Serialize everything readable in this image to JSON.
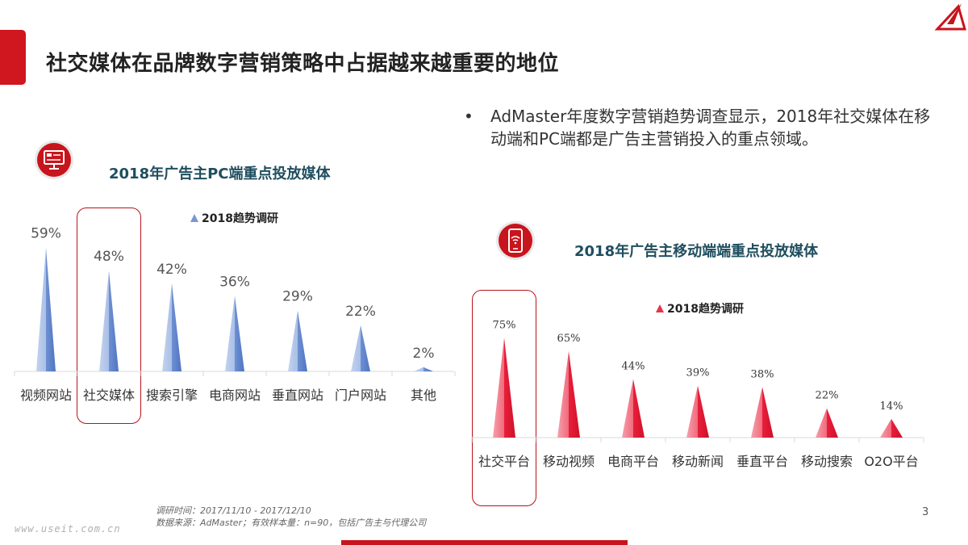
{
  "page": {
    "title": "社交媒体在品牌数字营销策略中占据越来越重要的地位",
    "bullet_mark": "•",
    "bullet_text": "AdMaster年度数字营销趋势调查显示，2018年社交媒体在移动端和PC端都是广告主营销投入的重点领域。",
    "footnote_line1": "调研时间：2017/11/10 - 2017/12/10",
    "footnote_line2": "数据来源：AdMaster；有效样本量：n=90，包括广告主与代理公司",
    "watermark": "www.useit.com.cn",
    "page_number": "3"
  },
  "colors": {
    "accent_red": "#d0161e",
    "pc_bar_light": "#b4c7e7",
    "pc_bar_dark": "#5b7fc7",
    "mobile_bar_light": "#f47a89",
    "mobile_bar_dark": "#e0152f",
    "subtitle": "#1f4e5f"
  },
  "chart_data": [
    {
      "type": "bar",
      "title": "2018年广告主PC端重点投放媒体",
      "legend": "2018趋势调研",
      "legend_placement": "top",
      "categories": [
        "视频网站",
        "社交媒体",
        "搜索引擎",
        "电商网站",
        "垂直网站",
        "门户网站",
        "其他"
      ],
      "series": [
        {
          "name": "2018趋势调研",
          "values": [
            59,
            48,
            42,
            36,
            29,
            22,
            2
          ]
        }
      ],
      "value_labels": [
        "59%",
        "48%",
        "42%",
        "36%",
        "29%",
        "22%",
        "2%"
      ],
      "ylim": [
        0,
        100
      ],
      "grid": false,
      "highlighted_category": "社交媒体",
      "icon": "desktop-monitor-icon"
    },
    {
      "type": "bar",
      "title": "2018年广告主移动端端重点投放媒体",
      "legend": "2018趋势调研",
      "legend_placement": "top",
      "categories": [
        "社交平台",
        "移动视频",
        "电商平台",
        "移动新闻",
        "垂直平台",
        "移动搜索",
        "O2O平台"
      ],
      "series": [
        {
          "name": "2018趋势调研",
          "values": [
            75,
            65,
            44,
            39,
            38,
            22,
            14
          ]
        }
      ],
      "value_labels": [
        "75%",
        "65%",
        "44%",
        "39%",
        "38%",
        "22%",
        "14%"
      ],
      "ylim": [
        0,
        100
      ],
      "grid": false,
      "highlighted_category": "社交平台",
      "icon": "smartphone-wifi-icon"
    }
  ]
}
